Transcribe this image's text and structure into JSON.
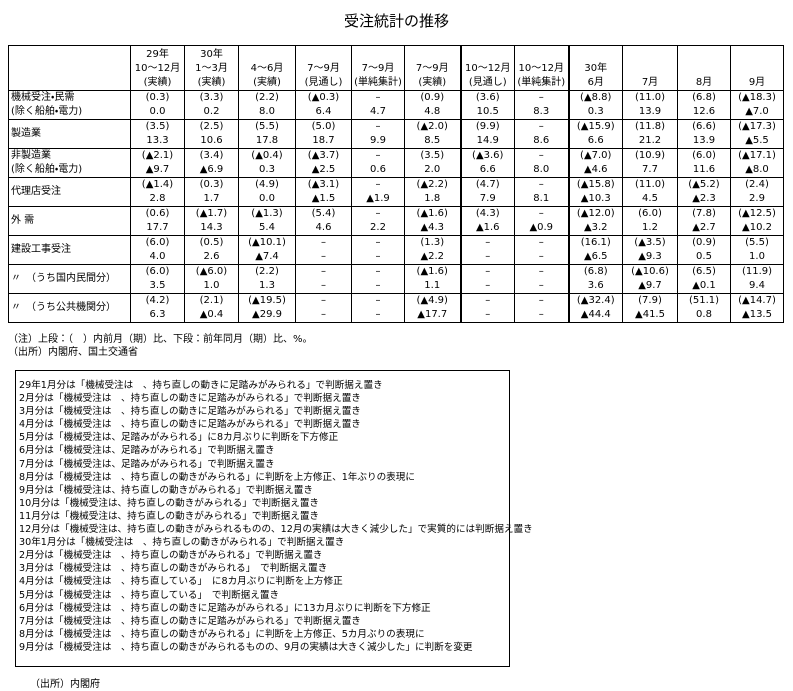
{
  "title": "受注統計の推移",
  "table": {
    "columns": [
      [
        "29年",
        "10～12月",
        "(実績)"
      ],
      [
        "30年",
        "1～3月",
        "(実績)"
      ],
      [
        "4～6月",
        "(実績)"
      ],
      [
        "7～9月",
        "(見通し)"
      ],
      [
        "7～9月",
        "(単純集計)"
      ],
      [
        "7～9月",
        "(実績)"
      ],
      [
        "10～12月",
        "(見通し)"
      ],
      [
        "10～12月",
        "(単純集計)"
      ],
      [
        "30年",
        "6月"
      ],
      [
        "7月"
      ],
      [
        "8月"
      ],
      [
        "9月"
      ]
    ],
    "rows": [
      {
        "label": [
          "機械受注・民需",
          "(除く船舶・電力)"
        ],
        "top": [
          "(0.3)",
          "(3.3)",
          "(2.2)",
          "(▲0.3)",
          "–",
          "(0.9)",
          "(3.6)",
          "–",
          "(▲8.8)",
          "(11.0)",
          "(6.8)",
          "(▲18.3)"
        ],
        "bottom": [
          "0.0",
          "0.2",
          "8.0",
          "6.4",
          "4.7",
          "4.8",
          "10.5",
          "8.3",
          "0.3",
          "13.9",
          "12.6",
          "▲7.0"
        ]
      },
      {
        "label": [
          "製造業"
        ],
        "top": [
          "(3.5)",
          "(2.5)",
          "(5.5)",
          "(5.0)",
          "–",
          "(▲2.0)",
          "(9.9)",
          "–",
          "(▲15.9)",
          "(11.8)",
          "(6.6)",
          "(▲17.3)"
        ],
        "bottom": [
          "13.3",
          "10.6",
          "17.8",
          "18.7",
          "9.9",
          "8.5",
          "14.9",
          "8.6",
          "6.6",
          "21.2",
          "13.9",
          "▲5.5"
        ]
      },
      {
        "label": [
          "非製造業",
          "(除く船舶・電力)"
        ],
        "top": [
          "(▲2.1)",
          "(3.4)",
          "(▲0.4)",
          "(▲3.7)",
          "–",
          "(3.5)",
          "(▲3.6)",
          "–",
          "(▲7.0)",
          "(10.9)",
          "(6.0)",
          "(▲17.1)"
        ],
        "bottom": [
          "▲9.7",
          "▲6.9",
          "0.3",
          "▲2.5",
          "0.6",
          "2.0",
          "6.6",
          "8.0",
          "▲4.6",
          "7.7",
          "11.6",
          "▲8.0"
        ]
      },
      {
        "label": [
          "代理店受注"
        ],
        "top": [
          "(▲1.4)",
          "(0.3)",
          "(4.9)",
          "(▲3.1)",
          "–",
          "(▲2.2)",
          "(4.7)",
          "–",
          "(▲15.8)",
          "(11.0)",
          "(▲5.2)",
          "(2.4)"
        ],
        "bottom": [
          "2.8",
          "1.7",
          "0.0",
          "▲1.5",
          "▲1.9",
          "1.8",
          "7.9",
          "8.1",
          "▲10.3",
          "4.5",
          "▲2.3",
          "2.9"
        ]
      },
      {
        "label": [
          "外 需"
        ],
        "top": [
          "(0.6)",
          "(▲1.7)",
          "(▲1.3)",
          "(5.4)",
          "–",
          "(▲1.6)",
          "(4.3)",
          "–",
          "(▲12.0)",
          "(6.0)",
          "(7.8)",
          "(▲12.5)"
        ],
        "bottom": [
          "17.7",
          "14.3",
          "5.4",
          "4.6",
          "2.2",
          "▲4.3",
          "▲1.6",
          "▲0.9",
          "▲3.2",
          "1.2",
          "▲2.7",
          "▲10.2"
        ]
      },
      {
        "label": [
          "建設工事受注"
        ],
        "top": [
          "(6.0)",
          "(0.5)",
          "(▲10.1)",
          "–",
          "–",
          "(1.3)",
          "–",
          "–",
          "(16.1)",
          "(▲3.5)",
          "(0.9)",
          "(5.5)"
        ],
        "bottom": [
          "4.0",
          "2.6",
          "▲7.4",
          "–",
          "–",
          "▲2.2",
          "–",
          "–",
          "▲6.5",
          "▲9.3",
          "0.5",
          "1.0"
        ]
      },
      {
        "label": [
          "〃　（うち国内民間分）"
        ],
        "top": [
          "(6.0)",
          "(▲6.0)",
          "(2.2)",
          "–",
          "–",
          "(▲1.6)",
          "–",
          "–",
          "(6.8)",
          "(▲10.6)",
          "(6.5)",
          "(11.9)"
        ],
        "bottom": [
          "3.5",
          "1.0",
          "1.3",
          "–",
          "–",
          "1.1",
          "–",
          "–",
          "3.6",
          "▲9.7",
          "▲0.1",
          "9.4"
        ]
      },
      {
        "label": [
          "〃　（うち公共機関分）"
        ],
        "top": [
          "(4.2)",
          "(2.1)",
          "(▲19.5)",
          "–",
          "–",
          "(▲4.9)",
          "–",
          "–",
          "(▲32.4)",
          "(7.9)",
          "(51.1)",
          "(▲14.7)"
        ],
        "bottom": [
          "6.3",
          "▲0.4",
          "▲29.9",
          "–",
          "–",
          "▲17.7",
          "–",
          "–",
          "▲44.4",
          "▲41.5",
          "0.8",
          "▲13.5"
        ]
      }
    ]
  },
  "notes": [
    "（注）上段：（　）内前月（期）比、下段：前年同月（期）比、%。",
    "（出所）内閣府、国土交通省"
  ],
  "box_lines": [
    "29年1月分は「機械受注は　、持ち直しの動きに足踏みがみられる」で判断据え置き",
    "2月分は「機械受注は　、持ち直しの動きに足踏みがみられる」で判断据え置き",
    "3月分は「機械受注は　、持ち直しの動きに足踏みがみられる」で判断据え置き",
    "4月分は「機械受注は　、持ち直しの動きに足踏みがみられる」で判断据え置き",
    "5月分は「機械受注は、足踏みがみられる」に8カ月ぶりに判断を下方修正",
    "6月分は「機械受注は、足踏みがみられる」で判断据え置き",
    "7月分は「機械受注は、足踏みがみられる」で判断据え置き",
    "8月分は「機械受注は　、持ち直しの動きがみられる」に判断を上方修正、1年ぶりの表現に",
    "9月分は「機械受注は、持ち直しの動きがみられる」で判断据え置き",
    "10月分は「機械受注は、持ち直しの動きがみられる」で判断据え置き",
    "11月分は「機械受注は、持ち直しの動きがみられる」で判断据え置き",
    "12月分は「機械受注は、持ち直しの動きがみられるものの、12月の実績は大きく減少した」で実質的には判断据え置き",
    "30年1月分は「機械受注は　、持ち直しの動きがみられる」で判断据え置き",
    "2月分は「機械受注は　、持ち直しの動きがみられる」で判断据え置き",
    "3月分は「機械受注は　、持ち直しの動きがみられる」　で判断据え置き",
    "4月分は「機械受注は　、持ち直している」　に8カ月ぶりに判断を上方修正",
    "5月分は「機械受注は　、持ち直している」　で判断据え置き",
    "6月分は「機械受注は　、持ち直しの動きに足踏みがみられる」に13カ月ぶりに判断を下方修正",
    "7月分は「機械受注は　、持ち直しの動きに足踏みがみられる」で判断据え置き",
    "8月分は「機械受注は　、持ち直しの動きがみられる」に判断を上方修正、5カ月ぶりの表現に",
    "9月分は「機械受注は　、持ち直しの動きがみられるものの、9月の実績は大きく減少した」に判断を変更"
  ],
  "box_source": "（出所）内閣府"
}
